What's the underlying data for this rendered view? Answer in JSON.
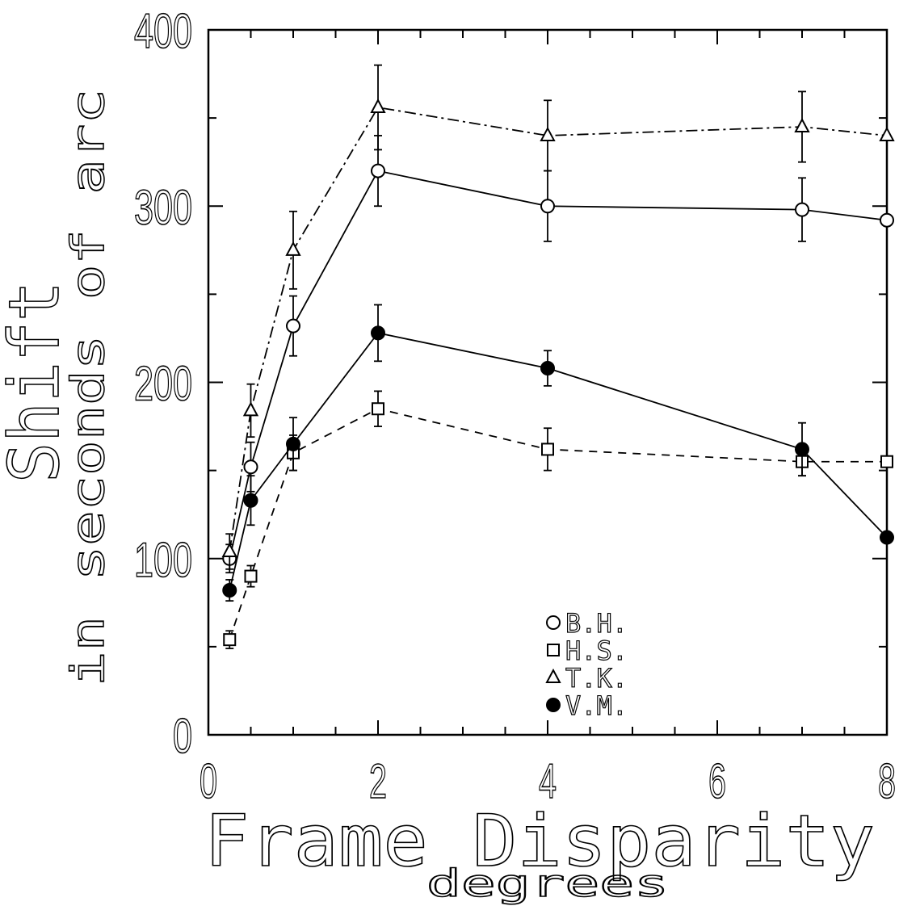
{
  "chart_data": {
    "type": "line",
    "xlabel": "Frame Disparity",
    "xlabel_sub": "degrees",
    "ylabel": "Shift",
    "ylabel_sub": "in seconds of arc",
    "xlim": [
      0,
      8
    ],
    "ylim": [
      0,
      400
    ],
    "x_ticks": [
      "0",
      "2",
      "4",
      "6",
      "8"
    ],
    "y_ticks": [
      "0",
      "100",
      "200",
      "300",
      "400"
    ],
    "grid": false,
    "legend_position": "bottom-right",
    "series": [
      {
        "name": "B.H.",
        "marker": "open-circle",
        "line_style": "solid",
        "points": [
          {
            "x": 0.25,
            "y": 100,
            "err": 8
          },
          {
            "x": 0.5,
            "y": 152,
            "err": 14
          },
          {
            "x": 1,
            "y": 232,
            "err": 17
          },
          {
            "x": 2,
            "y": 320,
            "err": 20
          },
          {
            "x": 4,
            "y": 300,
            "err": 20
          },
          {
            "x": 7,
            "y": 298,
            "err": 18
          },
          {
            "x": 8,
            "y": 292,
            "err": 0
          }
        ]
      },
      {
        "name": "H.S.",
        "marker": "open-square",
        "line_style": "dashed",
        "points": [
          {
            "x": 0.25,
            "y": 54,
            "err": 5
          },
          {
            "x": 0.5,
            "y": 90,
            "err": 6
          },
          {
            "x": 1,
            "y": 160,
            "err": 10
          },
          {
            "x": 2,
            "y": 185,
            "err": 10
          },
          {
            "x": 4,
            "y": 162,
            "err": 12
          },
          {
            "x": 7,
            "y": 155,
            "err": 8
          },
          {
            "x": 8,
            "y": 155,
            "err": 0
          }
        ]
      },
      {
        "name": "T.K.",
        "marker": "open-triangle",
        "line_style": "dash-dot",
        "points": [
          {
            "x": 0.25,
            "y": 104,
            "err": 10
          },
          {
            "x": 0.5,
            "y": 184,
            "err": 15
          },
          {
            "x": 1,
            "y": 275,
            "err": 22
          },
          {
            "x": 2,
            "y": 356,
            "err": 24
          },
          {
            "x": 4,
            "y": 340,
            "err": 20
          },
          {
            "x": 7,
            "y": 345,
            "err": 20
          },
          {
            "x": 8,
            "y": 340,
            "err": 0
          }
        ]
      },
      {
        "name": "V.M.",
        "marker": "filled-circle",
        "line_style": "solid",
        "points": [
          {
            "x": 0.25,
            "y": 82,
            "err": 6
          },
          {
            "x": 0.5,
            "y": 133,
            "err": 14
          },
          {
            "x": 1,
            "y": 165,
            "err": 15
          },
          {
            "x": 2,
            "y": 228,
            "err": 16
          },
          {
            "x": 4,
            "y": 208,
            "err": 10
          },
          {
            "x": 7,
            "y": 162,
            "err": 15
          },
          {
            "x": 8,
            "y": 112,
            "err": 0
          }
        ]
      }
    ]
  }
}
